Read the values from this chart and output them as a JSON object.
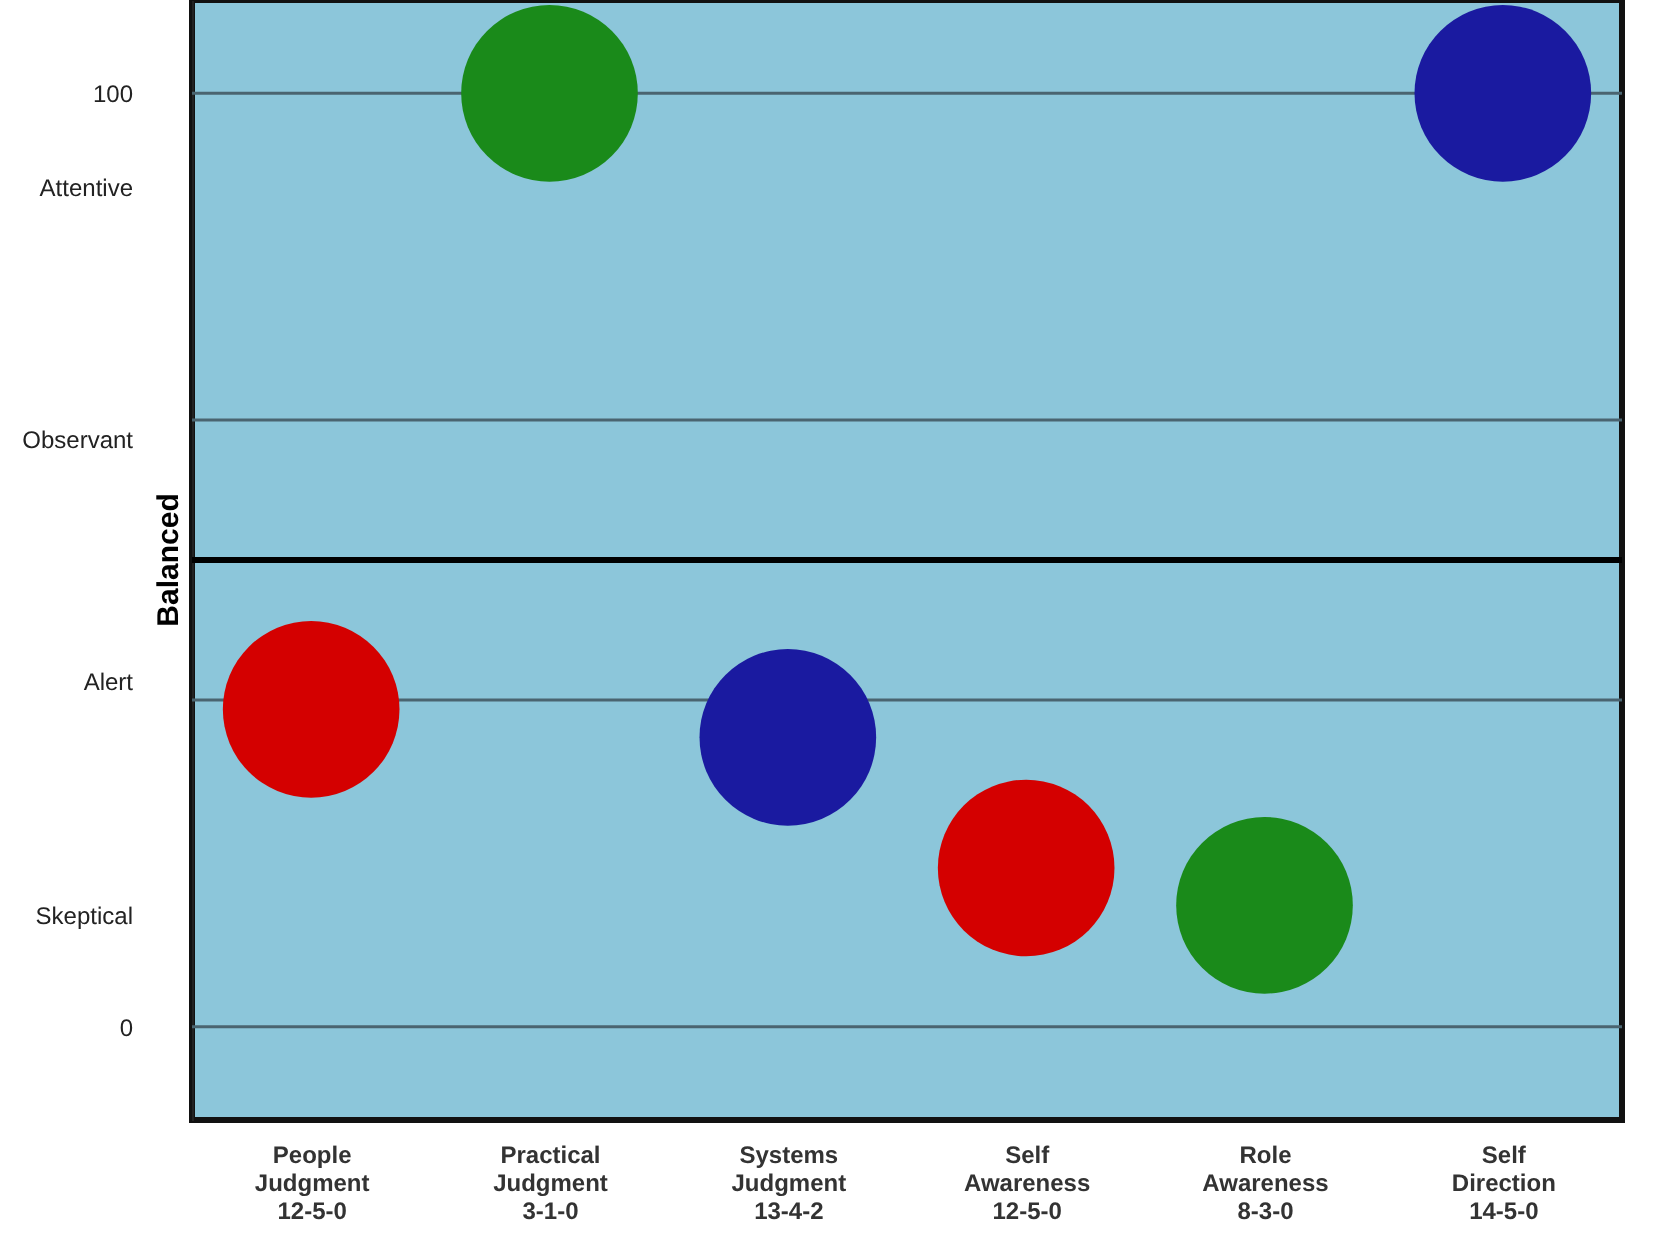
{
  "chart_data": {
    "type": "scatter",
    "marker": "circle",
    "legend": false,
    "grid": false,
    "categories": [
      "People\nJudgment\n12-5-0",
      "Practical\nJudgment\n3-1-0",
      "Systems\nJudgment\n13-4-2",
      "Self\nAwareness\n12-5-0",
      "Role\nAwareness\n8-3-0",
      "Self\nDirection\n14-5-0"
    ],
    "values": [
      34,
      100,
      31,
      17,
      13,
      100
    ],
    "colors": [
      "#d40000",
      "#1a8a1a",
      "#1a1aa0",
      "#d40000",
      "#1a8a1a",
      "#1a1aa0"
    ],
    "ylim": [
      -10,
      110
    ],
    "yticks": [
      0,
      100,
      {
        "value": 90,
        "label": "Attentive"
      },
      {
        "value": 63,
        "label": "Observant"
      },
      {
        "value": 37,
        "label": "Alert"
      },
      {
        "value": 12,
        "label": "Skeptical"
      }
    ],
    "ref_lines": [
      {
        "axis": "y",
        "value": 0,
        "color": "#4a6470"
      },
      {
        "axis": "y",
        "value": 35,
        "color": "#4a6470"
      },
      {
        "axis": "y",
        "value": 65,
        "color": "#4a6470"
      },
      {
        "axis": "y",
        "value": 100,
        "color": "#4a6470"
      },
      {
        "axis": "y",
        "value": 50,
        "label": "Balanced",
        "color": "#000000"
      }
    ]
  }
}
